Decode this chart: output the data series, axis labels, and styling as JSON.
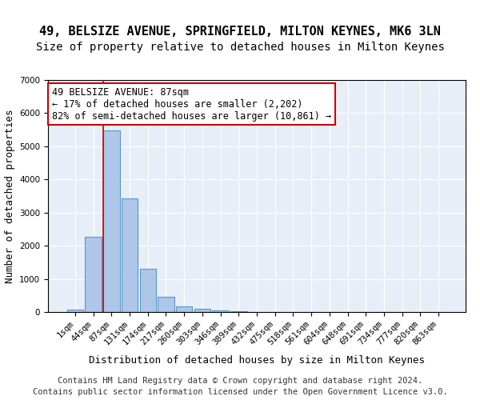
{
  "title_line1": "49, BELSIZE AVENUE, SPRINGFIELD, MILTON KEYNES, MK6 3LN",
  "title_line2": "Size of property relative to detached houses in Milton Keynes",
  "xlabel": "Distribution of detached houses by size in Milton Keynes",
  "ylabel": "Number of detached properties",
  "footer_line1": "Contains HM Land Registry data © Crown copyright and database right 2024.",
  "footer_line2": "Contains public sector information licensed under the Open Government Licence v3.0.",
  "bin_labels": [
    "1sqm",
    "44sqm",
    "87sqm",
    "131sqm",
    "174sqm",
    "217sqm",
    "260sqm",
    "303sqm",
    "346sqm",
    "389sqm",
    "432sqm",
    "475sqm",
    "518sqm",
    "561sqm",
    "604sqm",
    "648sqm",
    "691sqm",
    "734sqm",
    "777sqm",
    "820sqm",
    "863sqm"
  ],
  "bar_values": [
    80,
    2270,
    5470,
    3430,
    1310,
    460,
    160,
    90,
    55,
    30,
    0,
    0,
    0,
    0,
    0,
    0,
    0,
    0,
    0,
    0,
    0
  ],
  "bar_color": "#aec6e8",
  "bar_edge_color": "#5599cc",
  "red_line_x": 2,
  "annotation_title": "49 BELSIZE AVENUE: 87sqm",
  "annotation_line1": "← 17% of detached houses are smaller (2,202)",
  "annotation_line2": "82% of semi-detached houses are larger (10,861) →",
  "annotation_box_color": "#ffffff",
  "annotation_border_color": "#cc0000",
  "ylim": [
    0,
    7000
  ],
  "yticks": [
    0,
    1000,
    2000,
    3000,
    4000,
    5000,
    6000,
    7000
  ],
  "background_color": "#e8eef8",
  "grid_color": "#ffffff",
  "title1_fontsize": 11,
  "title2_fontsize": 10,
  "xlabel_fontsize": 9,
  "ylabel_fontsize": 9,
  "tick_fontsize": 7.5,
  "annotation_fontsize": 8.5,
  "footer_fontsize": 7.5
}
